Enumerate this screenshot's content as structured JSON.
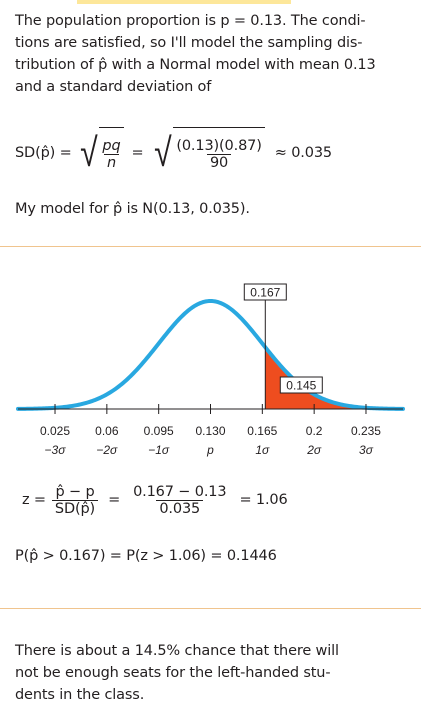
{
  "intro": {
    "line1": "The population proportion is p = 0.13. The condi-",
    "line2": "tions are satisfied, so I'll model the sampling dis-",
    "line3": "tribution of p̂ with a Normal model with mean 0.13",
    "line4": "and a standard deviation of"
  },
  "sd_formula": {
    "lhs": "SD(p̂) =",
    "sqrt_num": "pq",
    "sqrt_den": "n",
    "eq": "=",
    "num": "(0.13)(0.87)",
    "den": "90",
    "approx": "≈ 0.035"
  },
  "model_line": "My model for p̂ is N(0.13, 0.035).",
  "chart": {
    "mean": 0.13,
    "sd": 0.035,
    "x_range": [
      0.0,
      0.26
    ],
    "shade_from": 0.167,
    "curve_color": "#29a8e0",
    "shade_color": "#ee4d1f",
    "observed_label": "0.167",
    "area_label": "0.145",
    "ticks": [
      {
        "value": "0.025",
        "sigma": "−3σ"
      },
      {
        "value": "0.06",
        "sigma": "−2σ"
      },
      {
        "value": "0.095",
        "sigma": "−1σ"
      },
      {
        "value": "0.130",
        "sigma": "p"
      },
      {
        "value": "0.165",
        "sigma": "1σ"
      },
      {
        "value": "0.2",
        "sigma": "2σ"
      },
      {
        "value": "0.235",
        "sigma": "3σ"
      }
    ]
  },
  "z_formula": {
    "z": "z =",
    "num": "p̂ − p",
    "den": "SD(p̂)",
    "eq1": "=",
    "num2": "0.167 − 0.13",
    "den2": "0.035",
    "eq2": "= 1.06"
  },
  "prob_line": "P(p̂ > 0.167) = P(z > 1.06) = 0.1446",
  "conclusion": {
    "line1": "There is about a 14.5% chance that there will",
    "line2": "not be enough seats for the left-handed stu-",
    "line3": "dents in the class."
  },
  "colors": {
    "divider": "#f0c48e",
    "top_bar": "#fde79a"
  }
}
